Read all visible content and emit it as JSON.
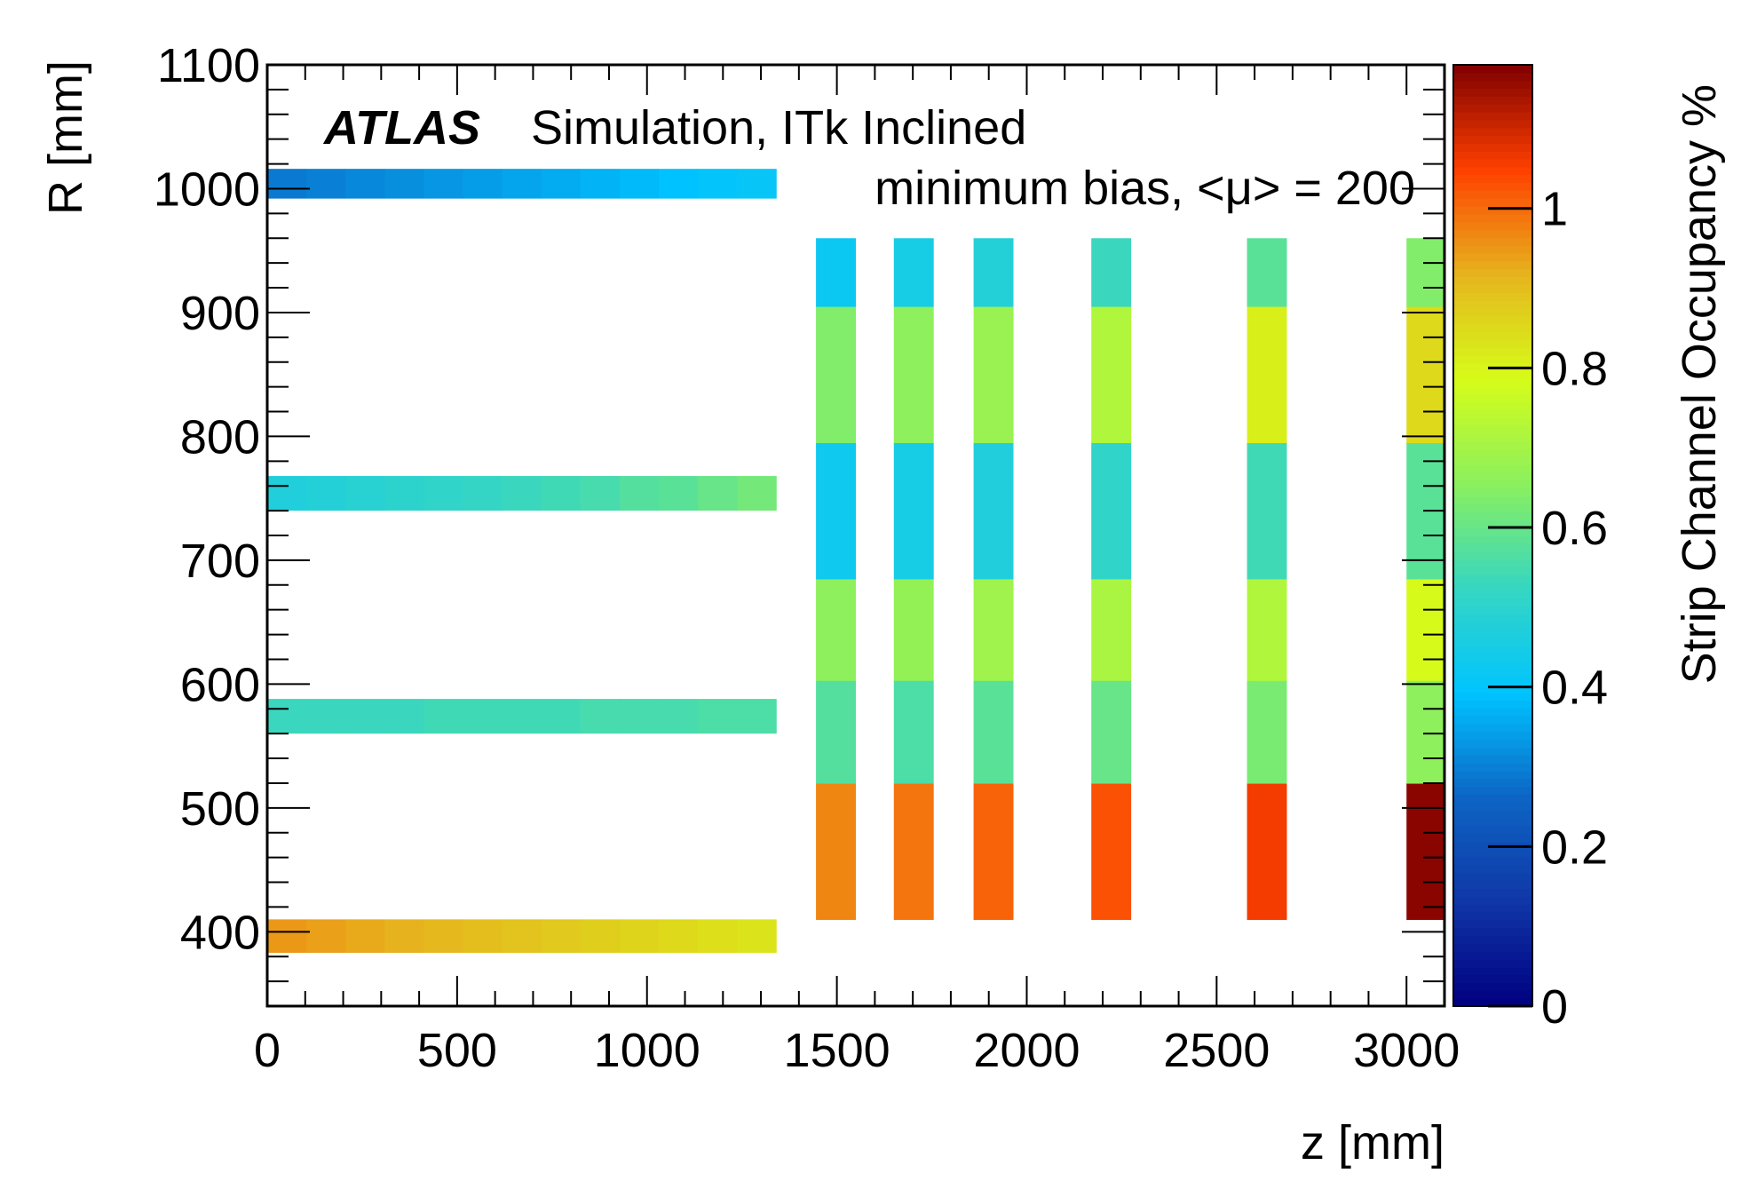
{
  "chart_data": {
    "type": "heatmap",
    "title": "",
    "xlabel": "z [mm]",
    "ylabel": "R [mm]",
    "xlim": [
      0,
      3100
    ],
    "ylim": [
      340,
      1100
    ],
    "x_ticks": [
      "0",
      "500",
      "1000",
      "1500",
      "2000",
      "2500",
      "3000"
    ],
    "y_ticks": [
      "400",
      "500",
      "600",
      "700",
      "800",
      "900",
      "1000",
      "1100"
    ],
    "colorbar": {
      "label": "Strip Channel Occupancy %",
      "range": [
        0,
        1.18
      ],
      "ticks": [
        "0",
        "0.2",
        "0.4",
        "0.6",
        "0.8",
        "1"
      ]
    },
    "annotations": {
      "experiment": "ATLAS",
      "label": "Simulation, ITk Inclined",
      "condition": "minimum bias, <μ> = 200"
    },
    "barrel": [
      {
        "r": [
          992,
          1016
        ],
        "z": [
          0,
          1340
        ],
        "occupancy": [
          0.29,
          0.3,
          0.31,
          0.32,
          0.33,
          0.34,
          0.35,
          0.36,
          0.37,
          0.38,
          0.39,
          0.4,
          0.41
        ]
      },
      {
        "r": [
          740,
          768
        ],
        "z": [
          0,
          1340
        ],
        "occupancy": [
          0.47,
          0.48,
          0.49,
          0.5,
          0.51,
          0.52,
          0.53,
          0.54,
          0.55,
          0.57,
          0.58,
          0.6,
          0.62
        ]
      },
      {
        "r": [
          560,
          588
        ],
        "z": [
          0,
          1340
        ],
        "occupancy": [
          0.53,
          0.53,
          0.53,
          0.53,
          0.54,
          0.54,
          0.54,
          0.54,
          0.55,
          0.55,
          0.55,
          0.56,
          0.56
        ]
      },
      {
        "r": [
          383,
          410
        ],
        "z": [
          0,
          1340
        ],
        "occupancy": [
          0.95,
          0.94,
          0.93,
          0.92,
          0.91,
          0.9,
          0.89,
          0.88,
          0.87,
          0.86,
          0.85,
          0.84,
          0.83
        ]
      }
    ],
    "endcap_r_bins": [
      [
        410,
        520
      ],
      [
        520,
        603
      ],
      [
        603,
        685
      ],
      [
        685,
        795
      ],
      [
        795,
        905
      ],
      [
        905,
        960
      ]
    ],
    "endcap": [
      {
        "z": [
          1445,
          1550
        ],
        "occupancy": [
          0.97,
          0.57,
          0.66,
          0.43,
          0.64,
          0.42
        ]
      },
      {
        "z": [
          1650,
          1755
        ],
        "occupancy": [
          0.99,
          0.56,
          0.67,
          0.45,
          0.66,
          0.45
        ]
      },
      {
        "z": [
          1860,
          1965
        ],
        "occupancy": [
          1.01,
          0.58,
          0.69,
          0.47,
          0.68,
          0.48
        ]
      },
      {
        "z": [
          2170,
          2275
        ],
        "occupancy": [
          1.03,
          0.6,
          0.71,
          0.51,
          0.72,
          0.53
        ]
      },
      {
        "z": [
          2580,
          2685
        ],
        "occupancy": [
          1.06,
          0.63,
          0.72,
          0.54,
          0.81,
          0.58
        ]
      },
      {
        "z": [
          3000,
          3100
        ],
        "occupancy": [
          1.17,
          0.66,
          0.79,
          0.58,
          0.85,
          0.64
        ]
      }
    ]
  }
}
